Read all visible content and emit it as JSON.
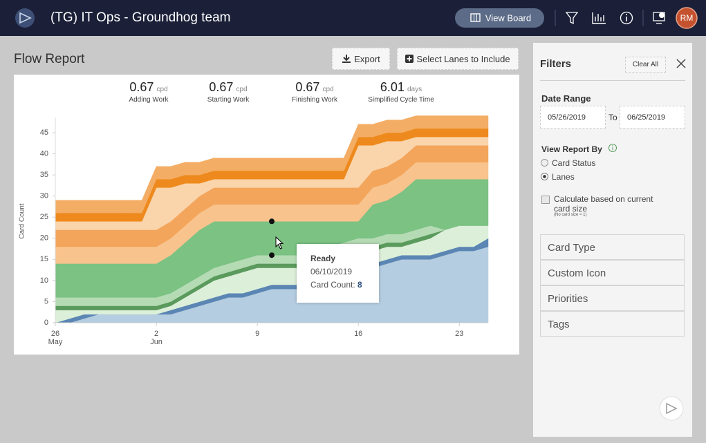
{
  "header": {
    "title": "(TG) IT Ops - Groundhog team",
    "view_board": "View Board",
    "avatar": "RM"
  },
  "report": {
    "title": "Flow Report",
    "export": "Export",
    "select_lanes": "Select Lanes to Include"
  },
  "metrics": [
    {
      "value": 0.67,
      "unit": "cpd",
      "label": "Adding Work"
    },
    {
      "value": 0.67,
      "unit": "cpd",
      "label": "Starting Work"
    },
    {
      "value": 0.67,
      "unit": "cpd",
      "label": "Finishing Work"
    },
    {
      "value": 6.01,
      "unit": "days",
      "label": "Simplified Cycle Time"
    }
  ],
  "chart_data": {
    "type": "stacked-area",
    "ylabel": "Card Count",
    "categories": [
      "26",
      null,
      null,
      null,
      null,
      null,
      null,
      "2",
      null,
      null,
      null,
      null,
      null,
      null,
      "9",
      null,
      null,
      null,
      null,
      null,
      null,
      "16",
      null,
      null,
      null,
      null,
      null,
      null,
      "23",
      null,
      null
    ],
    "category_months": [
      "May",
      null,
      null,
      null,
      null,
      null,
      null,
      "Jun",
      null,
      null,
      null,
      null,
      null,
      null,
      null,
      null,
      null,
      null,
      null,
      null,
      null,
      null,
      null,
      null,
      null,
      null,
      null,
      null,
      null,
      null,
      null
    ],
    "ylim": [
      0,
      50
    ],
    "yticks": [
      0,
      5,
      10,
      15,
      20,
      25,
      30,
      35,
      40,
      45
    ],
    "grid": false,
    "series": [
      {
        "color": "#b5cde0",
        "values": [
          0,
          0,
          1,
          2,
          2,
          2,
          2,
          2,
          2,
          3,
          4,
          5,
          6,
          6,
          7,
          8,
          8,
          8,
          9,
          10,
          11,
          12,
          13,
          14,
          15,
          15,
          15,
          16,
          17,
          17,
          18
        ]
      },
      {
        "color": "#5b86b4",
        "values": [
          0,
          1,
          1,
          0,
          0,
          0,
          0,
          0,
          1,
          1,
          1,
          1,
          1,
          1,
          1,
          1,
          1,
          1,
          1,
          1,
          1,
          1,
          1,
          1,
          1,
          1,
          1,
          1,
          1,
          1,
          2
        ]
      },
      {
        "color": "#dcefd9",
        "values": [
          3,
          2,
          1,
          1,
          1,
          1,
          1,
          1,
          1,
          2,
          3,
          4,
          4,
          5,
          5,
          4,
          4,
          4,
          4,
          4,
          4,
          4,
          3,
          3,
          2,
          3,
          4,
          5,
          5,
          5,
          3
        ]
      },
      {
        "color": "#5a9a5c",
        "values": [
          1,
          1,
          1,
          1,
          1,
          1,
          1,
          1,
          1,
          1,
          1,
          1,
          1,
          1,
          1,
          1,
          1,
          1,
          1,
          1,
          1,
          1,
          1,
          1,
          1,
          1,
          1,
          0,
          0,
          0,
          0
        ]
      },
      {
        "color": "#b5dbb5",
        "values": [
          2,
          2,
          2,
          2,
          2,
          2,
          2,
          2,
          2,
          2,
          2,
          2,
          2,
          2,
          2,
          2,
          2,
          2,
          2,
          2,
          2,
          2,
          2,
          2,
          2,
          2,
          2,
          0,
          0,
          0,
          0
        ]
      },
      {
        "name": "Ready",
        "color": "#7bc283",
        "values": [
          8,
          8,
          8,
          8,
          8,
          8,
          8,
          8,
          9,
          10,
          11,
          11,
          10,
          9,
          8,
          8,
          8,
          8,
          7,
          6,
          5,
          4,
          8,
          8,
          10,
          12,
          11,
          12,
          11,
          11,
          11
        ]
      },
      {
        "color": "#f8c38d",
        "values": [
          4,
          4,
          4,
          4,
          4,
          4,
          4,
          4,
          4,
          4,
          4,
          4,
          4,
          4,
          4,
          4,
          4,
          4,
          4,
          4,
          4,
          4,
          4,
          4,
          4,
          4,
          4,
          4,
          4,
          4,
          4
        ]
      },
      {
        "color": "#f3a55b",
        "values": [
          4,
          4,
          4,
          4,
          4,
          4,
          4,
          4,
          4,
          4,
          4,
          4,
          4,
          4,
          4,
          4,
          4,
          4,
          4,
          4,
          4,
          4,
          4,
          4,
          4,
          4,
          4,
          4,
          4,
          4,
          4
        ]
      },
      {
        "color": "#fad4ab",
        "values": [
          2,
          2,
          2,
          2,
          2,
          2,
          2,
          10,
          8,
          6,
          3,
          2,
          2,
          2,
          2,
          2,
          2,
          2,
          2,
          2,
          2,
          10,
          6,
          6,
          4,
          2,
          2,
          2,
          2,
          2,
          2
        ]
      },
      {
        "color": "#ee8a1d",
        "values": [
          2,
          2,
          2,
          2,
          2,
          2,
          2,
          2,
          2,
          2,
          2,
          2,
          2,
          2,
          2,
          2,
          2,
          2,
          2,
          2,
          2,
          2,
          2,
          2,
          2,
          2,
          2,
          2,
          2,
          2,
          2
        ]
      },
      {
        "color": "#f4ad64",
        "values": [
          3,
          3,
          3,
          3,
          3,
          3,
          3,
          3,
          3,
          3,
          3,
          3,
          3,
          3,
          3,
          3,
          3,
          3,
          3,
          3,
          3,
          3,
          3,
          3,
          3,
          3,
          3,
          3,
          3,
          3,
          3
        ]
      }
    ]
  },
  "tooltip": {
    "date": "06/10/2019",
    "label": "Card Count:",
    "value": 8
  },
  "filters": {
    "title": "Filters",
    "clear_all": "Clear All",
    "date_range": "Date Range",
    "from": "05/26/2019",
    "to_label": "To",
    "to": "06/25/2019",
    "view_by": "View Report By",
    "options": [
      "Card Status",
      "Lanes"
    ],
    "checkbox": "Calculate based on current card size",
    "note": "(No card size = 1)",
    "sections": [
      "Card Type",
      "Custom Icon",
      "Priorities",
      "Tags"
    ]
  }
}
